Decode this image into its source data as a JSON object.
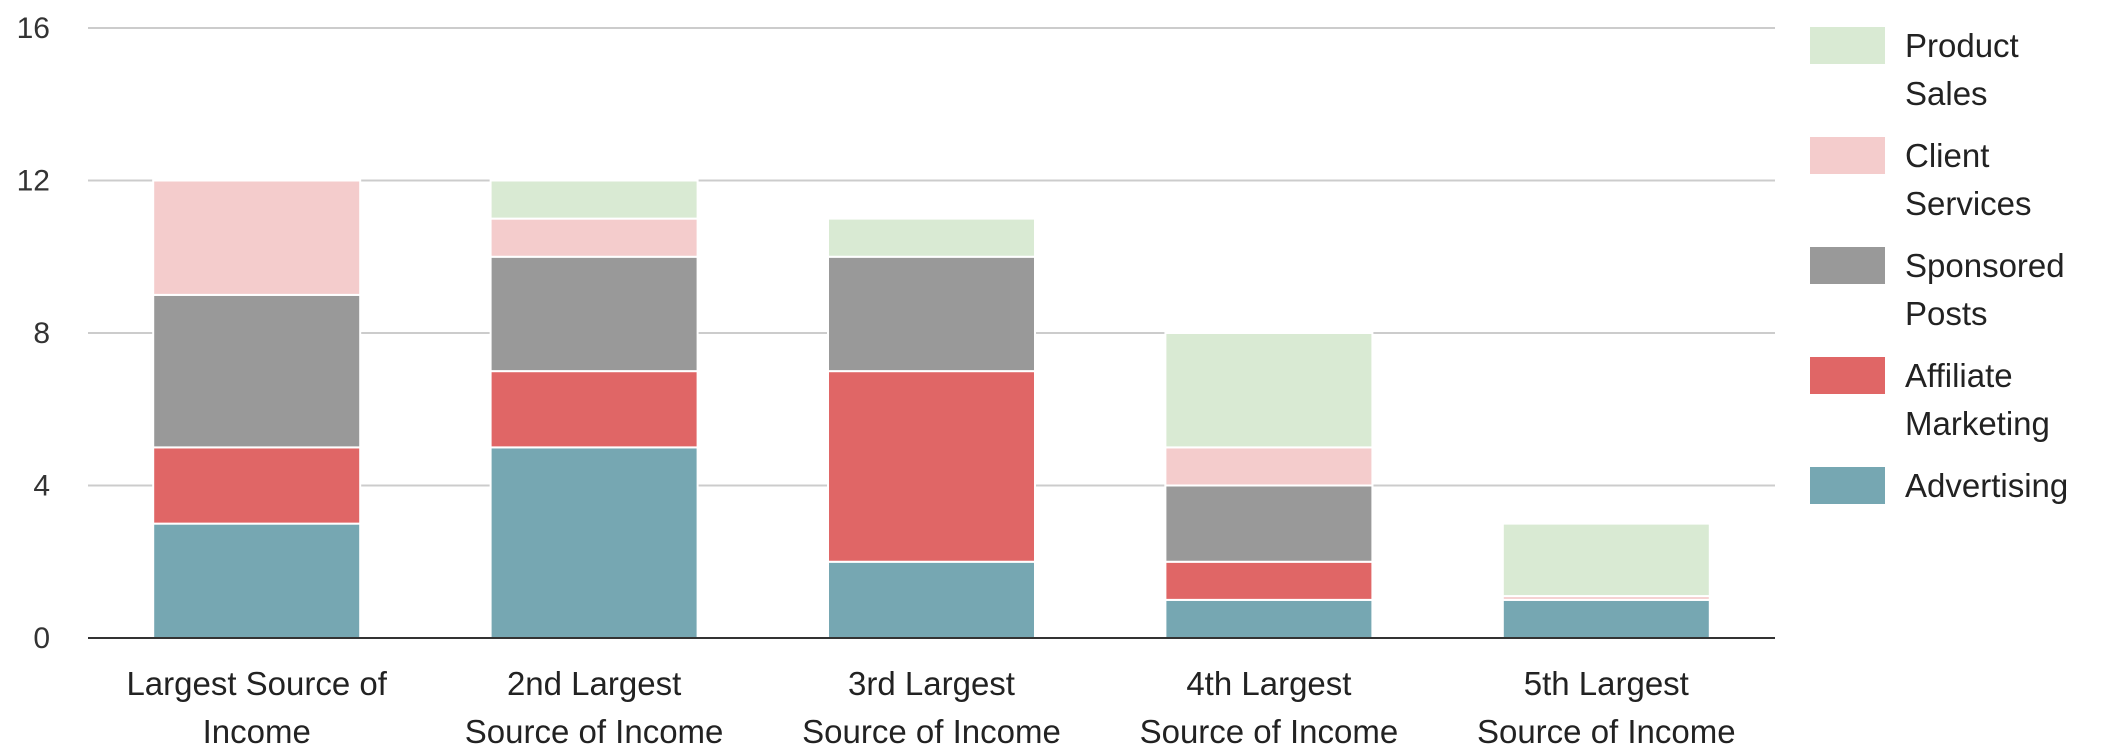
{
  "chart_data": {
    "type": "bar",
    "stacked": true,
    "title": "",
    "xlabel": "",
    "ylabel": "",
    "ylim": [
      0,
      16
    ],
    "yticks": [
      0,
      4,
      8,
      12,
      16
    ],
    "grid": true,
    "legend_position": "right",
    "categories": [
      "Largest Source of Income",
      "2nd Largest Source of Income",
      "3rd Largest Source of Income",
      "4th Largest Source of Income",
      "5th Largest Source of Income"
    ],
    "category_lines": [
      [
        "Largest Source of",
        "Income"
      ],
      [
        "2nd Largest",
        "Source of Income"
      ],
      [
        "3rd Largest",
        "Source of Income"
      ],
      [
        "4th Largest",
        "Source of Income"
      ],
      [
        "5th Largest",
        "Source of Income"
      ]
    ],
    "series": [
      {
        "name": "Advertising",
        "color": "#76a7b2",
        "values": [
          3,
          5,
          2,
          1,
          1
        ]
      },
      {
        "name": "Affiliate Marketing",
        "color": "#e06666",
        "values": [
          2,
          2,
          5,
          1,
          0
        ]
      },
      {
        "name": "Sponsored Posts",
        "color": "#999999",
        "values": [
          4,
          3,
          3,
          2,
          0
        ]
      },
      {
        "name": "Client Services",
        "color": "#f4cccc",
        "values": [
          3,
          1,
          0,
          1,
          0.1
        ]
      },
      {
        "name": "Product Sales",
        "color": "#d9ead3",
        "values": [
          0,
          1,
          1,
          3,
          1.9
        ]
      }
    ],
    "legend": [
      {
        "series": "Product Sales",
        "lines": [
          "Product",
          "Sales"
        ]
      },
      {
        "series": "Client Services",
        "lines": [
          "Client",
          "Services"
        ]
      },
      {
        "series": "Sponsored Posts",
        "lines": [
          "Sponsored",
          "Posts"
        ]
      },
      {
        "series": "Affiliate Marketing",
        "lines": [
          "Affiliate",
          "Marketing"
        ]
      },
      {
        "series": "Advertising",
        "lines": [
          "Advertising"
        ]
      }
    ]
  }
}
